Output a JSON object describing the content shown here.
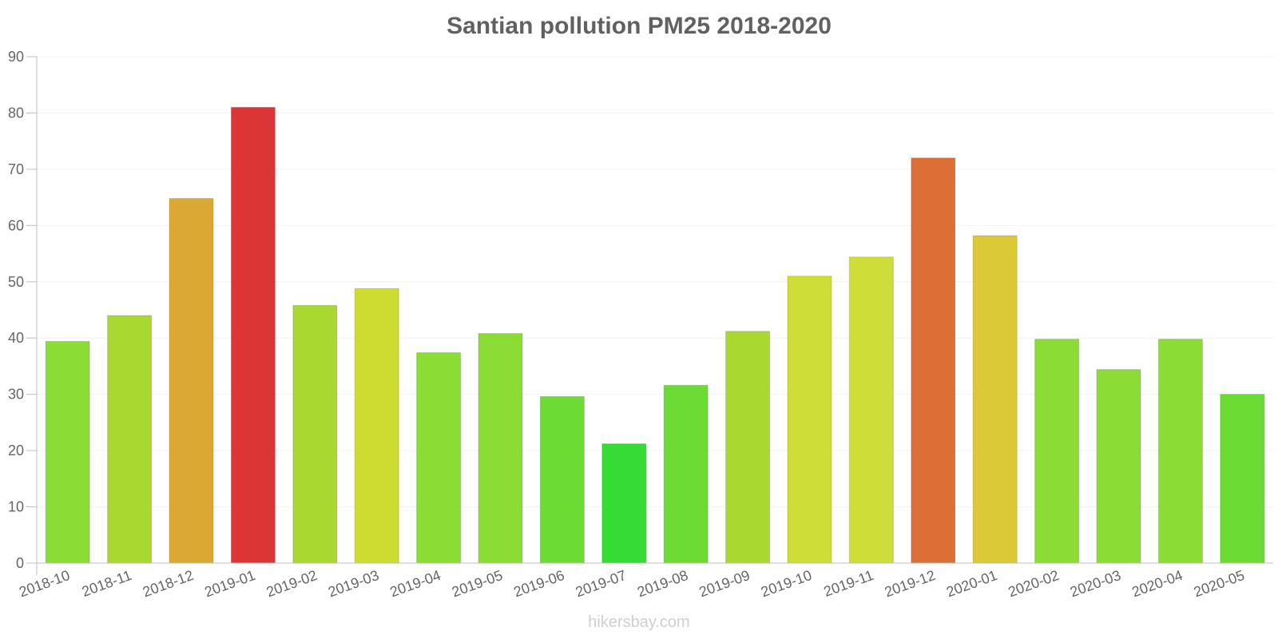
{
  "chart_data": {
    "type": "bar",
    "title": "Santian pollution PM25 2018-2020",
    "xlabel": "",
    "ylabel": "",
    "ylim": [
      0,
      90
    ],
    "yticks": [
      0,
      10,
      20,
      30,
      40,
      50,
      60,
      70,
      80,
      90
    ],
    "grid": true,
    "categories": [
      "2018-10",
      "2018-11",
      "2018-12",
      "2019-01",
      "2019-02",
      "2019-03",
      "2019-04",
      "2019-05",
      "2019-06",
      "2019-07",
      "2019-08",
      "2019-09",
      "2019-10",
      "2019-11",
      "2019-12",
      "2020-01",
      "2020-02",
      "2020-03",
      "2020-04",
      "2020-05"
    ],
    "values": [
      39.4,
      44,
      64.8,
      81,
      45.8,
      48.8,
      37.4,
      40.8,
      29.6,
      21.2,
      31.6,
      41.2,
      51,
      54.4,
      72,
      58.2,
      39.8,
      34.4,
      39.8,
      30
    ],
    "colors": [
      "#8bdc35",
      "#a9d831",
      "#dba834",
      "#db3635",
      "#a9d831",
      "#cedb31",
      "#8bdc35",
      "#8bdc35",
      "#6cdc35",
      "#36dc35",
      "#6cdc35",
      "#a9d831",
      "#cedd37",
      "#cedd37",
      "#db6f35",
      "#dbca35",
      "#8bdc35",
      "#8bdc35",
      "#8bdc35",
      "#6cdc35"
    ]
  },
  "watermark": "hikersbay.com"
}
